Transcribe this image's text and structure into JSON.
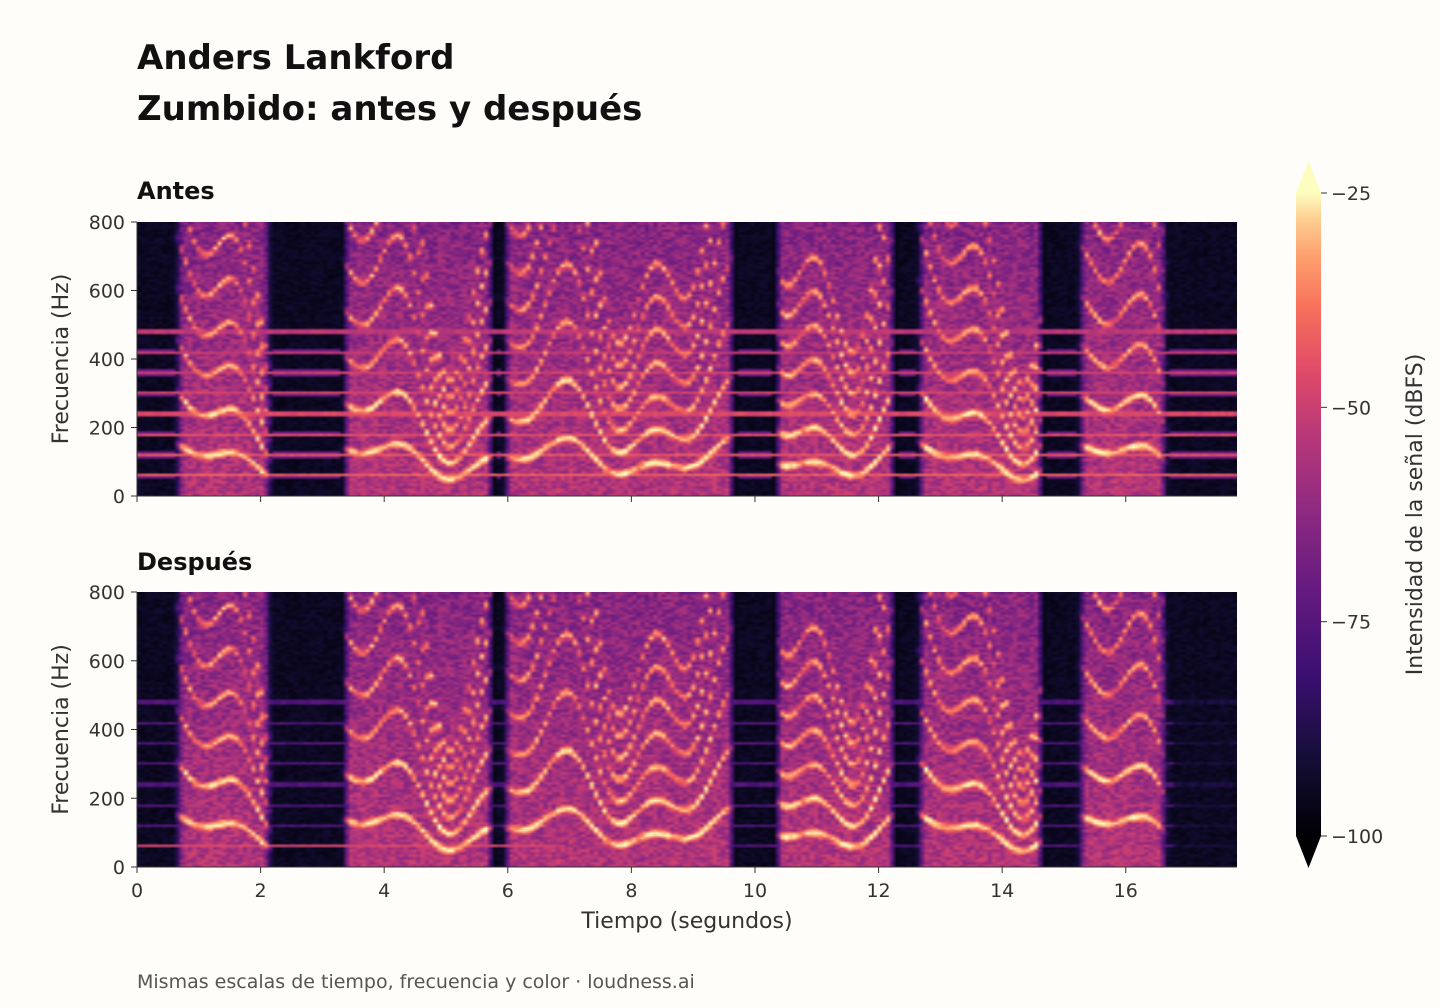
{
  "title_line1": "Anders Lankford",
  "title_line2": "Zumbido: antes y después",
  "footer": "Mismas escalas de tiempo, frecuencia y color  ·  loudness.ai",
  "chart_data": [
    {
      "type": "heatmap",
      "title": "Antes",
      "xlabel": "",
      "ylabel": "Frecuencia (Hz)",
      "xlim": [
        0,
        17.8
      ],
      "ylim": [
        0,
        800
      ],
      "xticks": [
        0,
        2,
        4,
        6,
        8,
        10,
        12,
        14,
        16
      ],
      "yticks": [
        0,
        200,
        400,
        600,
        800
      ],
      "hum_fundamental_hz": 60,
      "hum_harmonics_hz": [
        60,
        120,
        180,
        240,
        300,
        360,
        420,
        480
      ],
      "speech_segments_s": [
        [
          0.6,
          2.2
        ],
        [
          3.3,
          5.8
        ],
        [
          5.9,
          9.7
        ],
        [
          10.3,
          12.3
        ],
        [
          12.6,
          14.7
        ],
        [
          15.2,
          16.7
        ]
      ]
    },
    {
      "type": "heatmap",
      "title": "Después",
      "xlabel": "Tiempo (segundos)",
      "ylabel": "Frecuencia (Hz)",
      "xlim": [
        0,
        17.8
      ],
      "ylim": [
        0,
        800
      ],
      "xticks": [
        0,
        2,
        4,
        6,
        8,
        10,
        12,
        14,
        16
      ],
      "yticks": [
        0,
        200,
        400,
        600,
        800
      ],
      "hum_harmonics_hz": [
        60,
        120,
        180,
        240,
        300,
        360,
        420,
        480
      ],
      "hum_residual": "reduced",
      "speech_segments_s": [
        [
          0.6,
          2.2
        ],
        [
          3.3,
          5.8
        ],
        [
          5.9,
          9.7
        ],
        [
          10.3,
          12.3
        ],
        [
          12.6,
          14.7
        ],
        [
          15.2,
          16.7
        ]
      ]
    }
  ],
  "colorbar": {
    "label": "Intensidad de la señal (dBFS)",
    "colormap": "magma",
    "ticks": [
      -25,
      -50,
      -75,
      -100
    ],
    "tick_labels": [
      "−25",
      "−50",
      "−75",
      "−100"
    ],
    "range": [
      -100,
      -25
    ],
    "extend": "both"
  }
}
